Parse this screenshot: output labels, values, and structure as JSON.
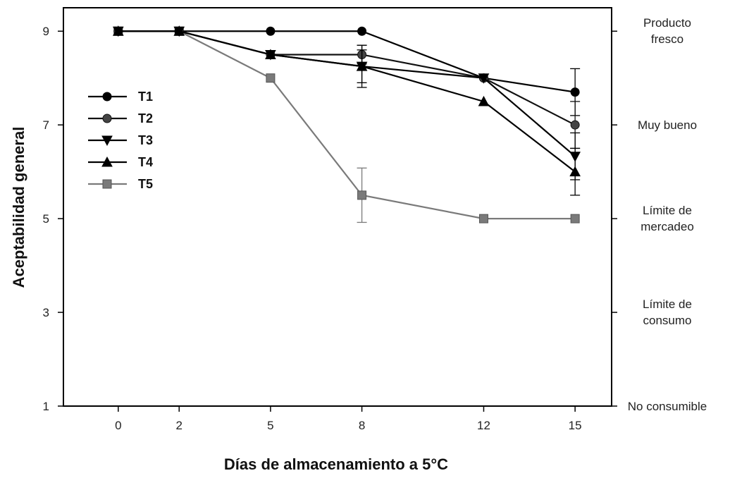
{
  "chart_data": {
    "type": "line",
    "xlabel": "Días de almacenamiento a 5°C",
    "ylabel": "Aceptabilidad general",
    "x": [
      0,
      2,
      5,
      8,
      12,
      15
    ],
    "x_tick_labels": [
      "0",
      "2",
      "5",
      "8",
      "12",
      "15"
    ],
    "xlim": [
      -1.8,
      16.2
    ],
    "ylim": [
      1,
      9.5
    ],
    "y_ticks": [
      1,
      3,
      5,
      7,
      9
    ],
    "y_tick_labels": [
      "1",
      "3",
      "5",
      "7",
      "9"
    ],
    "grid": false,
    "legend_position": "left",
    "right_axis_labels": [
      {
        "value": 9,
        "lines": [
          "Producto",
          "fresco"
        ]
      },
      {
        "value": 7,
        "lines": [
          "Muy bueno"
        ]
      },
      {
        "value": 5,
        "lines": [
          "Límite de",
          "mercadeo"
        ]
      },
      {
        "value": 3,
        "lines": [
          "Límite de",
          "consumo"
        ]
      },
      {
        "value": 1,
        "lines": [
          "No consumible"
        ]
      }
    ],
    "series": [
      {
        "name": "T1",
        "marker": "circle",
        "color": "#000000",
        "fill": "#000000",
        "values": [
          9,
          9,
          9,
          9,
          8,
          7.7
        ],
        "errors": [
          0,
          0,
          0,
          0,
          0,
          0.5
        ]
      },
      {
        "name": "T2",
        "marker": "circle",
        "color": "#111111",
        "fill": "#444444",
        "values": [
          9,
          9,
          8.5,
          8.5,
          8,
          7
        ],
        "errors": [
          0,
          0,
          0,
          0.2,
          0,
          0.5
        ]
      },
      {
        "name": "T3",
        "marker": "triangle-down",
        "color": "#000000",
        "fill": "#000000",
        "values": [
          9,
          9,
          8.5,
          8.25,
          8,
          6.33
        ],
        "errors": [
          0,
          0,
          0,
          0.45,
          0,
          0.5
        ]
      },
      {
        "name": "T4",
        "marker": "triangle-up",
        "color": "#000000",
        "fill": "#000000",
        "values": [
          9,
          9,
          8.5,
          8.25,
          7.5,
          6
        ],
        "errors": [
          0,
          0,
          0,
          0.35,
          0,
          0.5
        ]
      },
      {
        "name": "T5",
        "marker": "square",
        "color": "#7a7a7a",
        "fill": "#7a7a7a",
        "values": [
          9,
          9,
          8,
          5.5,
          5,
          5
        ],
        "errors": [
          0,
          0,
          0,
          0.58,
          0,
          0
        ]
      }
    ]
  }
}
